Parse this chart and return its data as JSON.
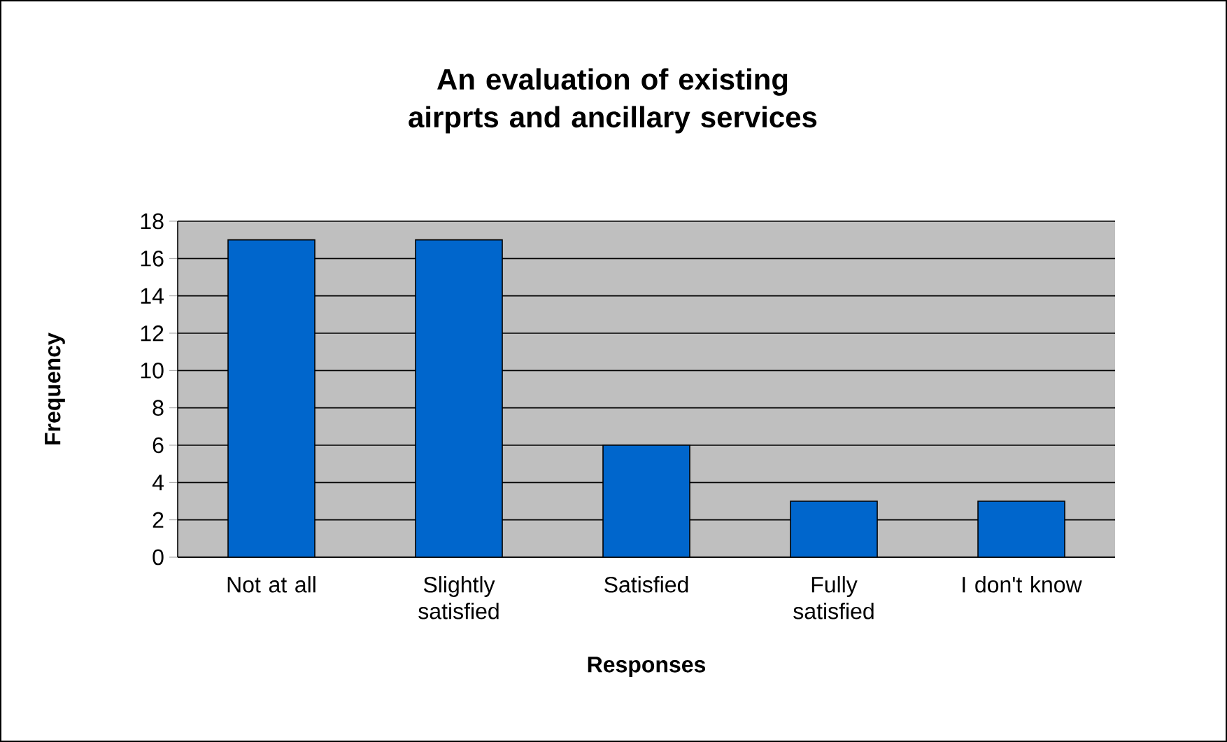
{
  "chart_data": {
    "type": "bar",
    "title": "An evaluation of existing airprts and ancillary services",
    "xlabel": "Responses",
    "ylabel": "Frequency",
    "categories": [
      "Not  at all",
      "Slightly satisfied",
      "Satisfied",
      "Fully satisfied",
      "I don't know"
    ],
    "values": [
      17,
      17,
      6,
      3,
      3
    ],
    "color": "#0066cc",
    "ylim": [
      0,
      18
    ],
    "yticks": [
      0,
      2,
      4,
      6,
      8,
      10,
      12,
      14,
      16,
      18
    ],
    "grid": "y"
  }
}
